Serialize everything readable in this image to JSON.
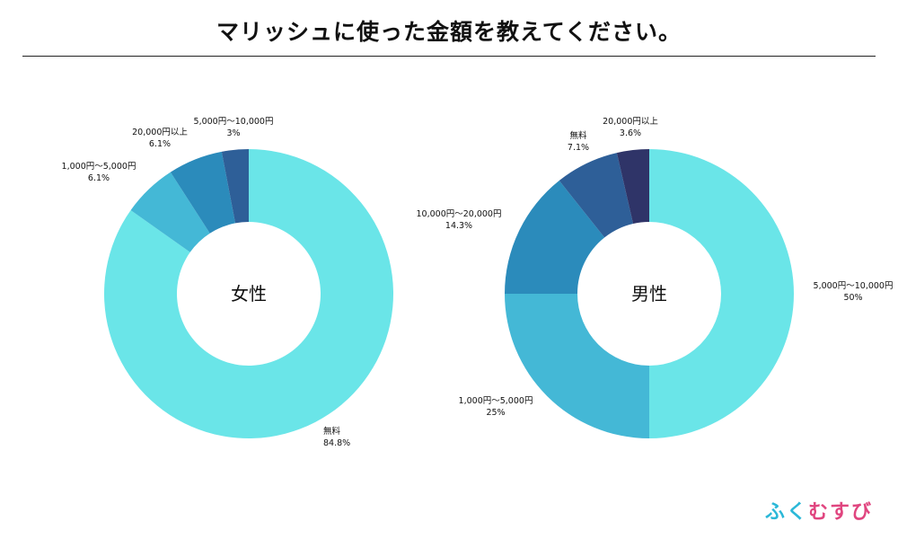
{
  "header": {
    "title": "マリッシュに使った金額を教えてください。"
  },
  "brand": {
    "chars": [
      "ふ",
      "く",
      "む",
      "す",
      "び"
    ],
    "colors": [
      "#2bb8d8",
      "#2bb8d8",
      "#e0457f",
      "#e0457f",
      "#e0457f"
    ]
  },
  "chart_data": [
    {
      "type": "pie",
      "center_label": "女性",
      "slices": [
        {
          "name": "無料",
          "value": 84.8,
          "label": "84.8%",
          "color": "#6ae5e8"
        },
        {
          "name": "1,000円〜5,000円",
          "value": 6.1,
          "label": "6.1%",
          "color": "#44b8d6"
        },
        {
          "name": "20,000円以上",
          "value": 6.1,
          "label": "6.1%",
          "color": "#2b8bbb"
        },
        {
          "name": "5,000円〜10,000円",
          "value": 3,
          "label": "3%",
          "color": "#2e5f98"
        }
      ]
    },
    {
      "type": "pie",
      "center_label": "男性",
      "slices": [
        {
          "name": "5,000円〜10,000円",
          "value": 50,
          "label": "50%",
          "color": "#6ae5e8"
        },
        {
          "name": "1,000円〜5,000円",
          "value": 25,
          "label": "25%",
          "color": "#44b8d6"
        },
        {
          "name": "10,000円〜20,000円",
          "value": 14.3,
          "label": "14.3%",
          "color": "#2b8bbb"
        },
        {
          "name": "無料",
          "value": 7.1,
          "label": "7.1%",
          "color": "#2e5f98"
        },
        {
          "name": "20,000円以上",
          "value": 3.6,
          "label": "3.6%",
          "color": "#2f3468"
        }
      ]
    }
  ]
}
